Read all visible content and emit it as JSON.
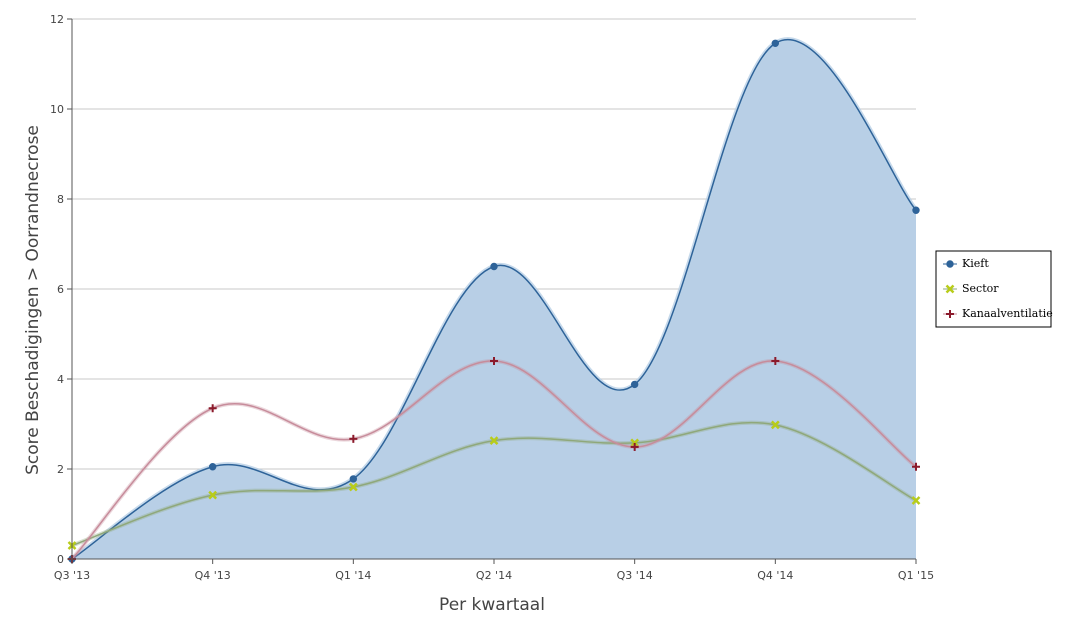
{
  "chart_data": {
    "type": "area",
    "categories": [
      "Q3 '13",
      "Q4 '13",
      "Q1 '14",
      "Q2 '14",
      "Q3 '14",
      "Q4 '14",
      "Q1 '15"
    ],
    "xlabel": "Per kwartaal",
    "ylabel": "Score Beschadigingen > Oorrandnecrose",
    "ylim": [
      0,
      12
    ],
    "yticks": [
      0,
      2,
      4,
      6,
      8,
      10,
      12
    ],
    "grid": true,
    "legend_position": "right",
    "series": [
      {
        "name": "Kieft",
        "type": "area",
        "marker": "circle",
        "color": "#2e6399",
        "fill": "#b8cfe6",
        "values": [
          0,
          2.05,
          1.78,
          6.5,
          3.88,
          11.46,
          7.75
        ]
      },
      {
        "name": "Sector",
        "type": "line",
        "marker": "x",
        "color": "#8fa87a",
        "markerColor": "#b8cc1a",
        "values": [
          0.3,
          1.42,
          1.6,
          2.63,
          2.58,
          2.98,
          1.3
        ]
      },
      {
        "name": "Kanaalventilatie",
        "type": "line",
        "marker": "plus",
        "color": "#c78c9b",
        "markerColor": "#8b1a2b",
        "values": [
          0,
          3.35,
          2.67,
          4.4,
          2.49,
          4.4,
          2.05
        ]
      }
    ]
  }
}
